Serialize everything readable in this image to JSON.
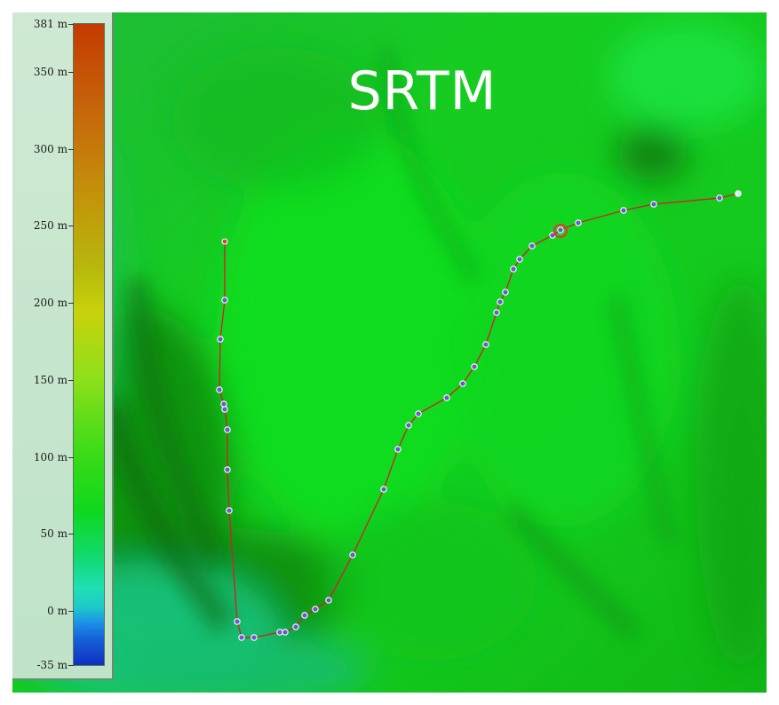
{
  "map": {
    "title": "SRTM",
    "elevation_scale": {
      "min_m": -35,
      "max_m": 381,
      "labels": [
        "381 m",
        "350 m",
        "300 m",
        "250 m",
        "200 m",
        "150 m",
        "100 m",
        "50 m",
        "0 m",
        "-35 m"
      ],
      "values": [
        381,
        350,
        300,
        250,
        200,
        150,
        100,
        50,
        0,
        -35
      ],
      "colors": {
        "high": "#c43a00",
        "mid_high": "#c4900a",
        "mid": "#c8d20c",
        "mid_low": "#0fd81d",
        "sea_level": "#1fe0b4",
        "below_sea": "#0f2fc2"
      }
    },
    "track": {
      "line_color": "#c62828",
      "waypoint_fill": "#6a5acd",
      "start_marker_color": "#e53935",
      "selected_marker_color": "#e53935",
      "waypoint_count": 43
    }
  }
}
